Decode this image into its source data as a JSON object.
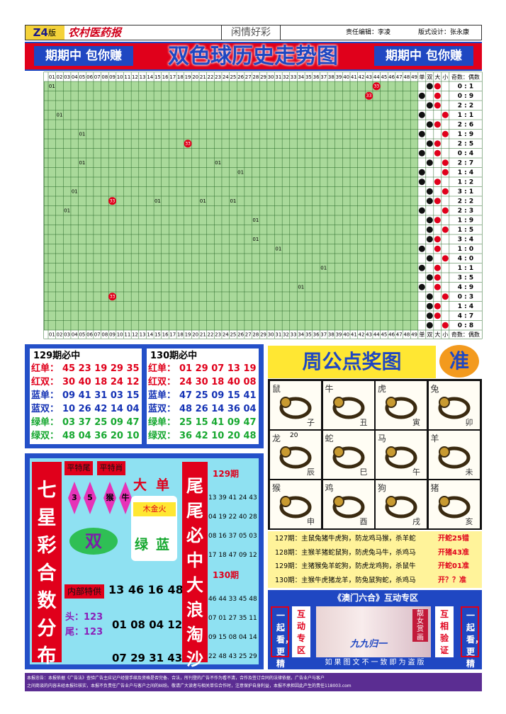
{
  "header": {
    "edition": "Z4",
    "edition_suffix": "版",
    "paper": "农村医药报",
    "column": "闲情好彩",
    "editor": "责任编辑：李凌",
    "designer": "版式设计：张永康"
  },
  "banner": {
    "slogan_left": "期期中 包你赚",
    "title": "双色球历史走势图",
    "slogan_right": "期期中 包你赚"
  },
  "trend": {
    "columns": [
      "01",
      "02",
      "03",
      "04",
      "05",
      "06",
      "07",
      "08",
      "09",
      "10",
      "11",
      "12",
      "13",
      "14",
      "15",
      "16",
      "17",
      "18",
      "19",
      "20",
      "21",
      "22",
      "23",
      "24",
      "25",
      "26",
      "27",
      "28",
      "29",
      "30",
      "31",
      "32",
      "33",
      "34",
      "35",
      "36",
      "37",
      "38",
      "39",
      "40",
      "41",
      "42",
      "43",
      "44",
      "45",
      "46",
      "47",
      "48",
      "49"
    ],
    "extra_columns": [
      "单",
      "双",
      "大",
      "小"
    ],
    "ratio_header": "奇数：偶数",
    "rows": [
      {
        "hits": [
          {
            "column": "01",
            "label": "01"
          },
          {
            "column": "44",
            "label": "33",
            "kind": "ball"
          }
        ],
        "odd_even": "双",
        "big_small": "大",
        "ratio": "0 : 1"
      },
      {
        "hits": [
          {
            "column": "43",
            "label": "33",
            "kind": "ball"
          }
        ],
        "odd_even": "单",
        "big_small": "大",
        "ratio": "0 : 9"
      },
      {
        "hits": [],
        "odd_even": "双",
        "big_small": "大",
        "ratio": "2 : 2"
      },
      {
        "hits": [
          {
            "column": "02",
            "label": "01"
          }
        ],
        "odd_even": "单",
        "big_small": "小",
        "ratio": "1 : 1"
      },
      {
        "hits": [],
        "odd_even": "双",
        "big_small": "大",
        "ratio": "2 : 6"
      },
      {
        "hits": [
          {
            "column": "05",
            "label": "01"
          }
        ],
        "odd_even": "单",
        "big_small": "小",
        "ratio": "1 : 9"
      },
      {
        "hits": [
          {
            "column": "19",
            "label": "33",
            "kind": "ball"
          }
        ],
        "odd_even": "双",
        "big_small": "大",
        "ratio": "2 : 5"
      },
      {
        "hits": [],
        "odd_even": "单",
        "big_small": "大",
        "ratio": "0 : 4"
      },
      {
        "hits": [
          {
            "column": "05",
            "label": "01"
          },
          {
            "column": "23",
            "label": "01"
          }
        ],
        "odd_even": "双",
        "big_small": "小",
        "ratio": "2 : 7"
      },
      {
        "hits": [
          {
            "column": "26",
            "label": "01"
          }
        ],
        "odd_even": "单",
        "big_small": "小",
        "ratio": "1 : 4"
      },
      {
        "hits": [],
        "odd_even": "单",
        "big_small": "大",
        "ratio": "1 : 2"
      },
      {
        "hits": [
          {
            "column": "04",
            "label": "01"
          }
        ],
        "odd_even": "双",
        "big_small": "小",
        "ratio": "3 : 1"
      },
      {
        "hits": [
          {
            "column": "09",
            "label": "33",
            "kind": "ball"
          },
          {
            "column": "15",
            "label": "01"
          },
          {
            "column": "21",
            "label": "01"
          },
          {
            "column": "25",
            "label": "01"
          }
        ],
        "odd_even": "双",
        "big_small": "大",
        "ratio": "2 : 2"
      },
      {
        "hits": [
          {
            "column": "03",
            "label": "01"
          }
        ],
        "odd_even": "单",
        "big_small": "小",
        "ratio": "2 : 3"
      },
      {
        "hits": [
          {
            "column": "28",
            "label": "01"
          }
        ],
        "odd_even": "双",
        "big_small": "大",
        "ratio": "1 : 9"
      },
      {
        "hits": [],
        "odd_even": "双",
        "big_small": "小",
        "ratio": "1 : 5"
      },
      {
        "hits": [
          {
            "column": "28",
            "label": "01"
          }
        ],
        "odd_even": "双",
        "big_small": "大",
        "ratio": "3 : 4"
      },
      {
        "hits": [
          {
            "column": "31",
            "label": "01"
          }
        ],
        "odd_even": "单",
        "big_small": "大",
        "ratio": "1 : 0"
      },
      {
        "hits": [],
        "odd_even": "双",
        "big_small": "小",
        "ratio": "4 : 0"
      },
      {
        "hits": [
          {
            "column": "37",
            "label": "01"
          }
        ],
        "odd_even": "单",
        "big_small": "大",
        "ratio": "1 : 1"
      },
      {
        "hits": [],
        "odd_even": "双",
        "big_small": "大",
        "ratio": "3 : 5"
      },
      {
        "hits": [
          {
            "column": "34",
            "label": "01"
          }
        ],
        "odd_even": "单",
        "big_small": "大",
        "ratio": "4 : 9"
      },
      {
        "hits": [
          {
            "column": "09",
            "label": "33",
            "kind": "ball"
          }
        ],
        "odd_even": "双",
        "big_small": "小",
        "ratio": "0 : 3"
      },
      {
        "hits": [],
        "odd_even": "双",
        "big_small": "大",
        "ratio": "1 : 4"
      },
      {
        "hits": [],
        "odd_even": "双",
        "big_small": "大",
        "ratio": "4 : 7"
      },
      {
        "hits": [],
        "odd_even": "双",
        "big_small": "小",
        "ratio": "0 : 8"
      }
    ]
  },
  "picks": [
    {
      "title": "129期必中",
      "lines": [
        {
          "label": "红单：",
          "numbers": "45 23 19 29 35",
          "color": "#e0001b"
        },
        {
          "label": "红双：",
          "numbers": "30 40 18 24 12",
          "color": "#e0001b"
        },
        {
          "label": "蓝单：",
          "numbers": "09 41 31 03 15",
          "color": "#1533b5"
        },
        {
          "label": "蓝双：",
          "numbers": "10 26 42 14 04",
          "color": "#1533b5"
        },
        {
          "label": "绿单：",
          "numbers": "03 37 25 09 47",
          "color": "#17a830"
        },
        {
          "label": "绿双：",
          "numbers": "48 04 36 20 10",
          "color": "#17a830"
        }
      ]
    },
    {
      "title": "130期必中",
      "lines": [
        {
          "label": "红单：",
          "numbers": "01 29 07 13 19",
          "color": "#e0001b"
        },
        {
          "label": "红双：",
          "numbers": "24 30 18 40 08",
          "color": "#e0001b"
        },
        {
          "label": "蓝单：",
          "numbers": "47 25 09 15 41",
          "color": "#1533b5"
        },
        {
          "label": "蓝双：",
          "numbers": "48 26 14 36 04",
          "color": "#1533b5"
        },
        {
          "label": "绿单：",
          "numbers": "25 15 41 09 47",
          "color": "#17a830"
        },
        {
          "label": "绿双：",
          "numbers": "36 42 10 20 48",
          "color": "#17a830"
        }
      ]
    }
  ],
  "zodiac": {
    "title": "周公点奖图",
    "badge": "准",
    "animals": [
      {
        "name": "鼠",
        "branch": "子"
      },
      {
        "name": "牛",
        "branch": "丑"
      },
      {
        "name": "虎",
        "branch": "寅"
      },
      {
        "name": "兔",
        "branch": "卯"
      },
      {
        "name": "龙",
        "branch": "辰",
        "note": "20"
      },
      {
        "name": "蛇",
        "branch": "巳"
      },
      {
        "name": "马",
        "branch": "午"
      },
      {
        "name": "羊",
        "branch": "未"
      },
      {
        "name": "猴",
        "branch": "申"
      },
      {
        "name": "鸡",
        "branch": "酉"
      },
      {
        "name": "狗",
        "branch": "戌"
      },
      {
        "name": "猪",
        "branch": "亥"
      }
    ]
  },
  "predictions": [
    {
      "text": "127期：主鼠兔猪牛虎狗，防龙鸡马猴，杀羊蛇",
      "result": "开蛇25错"
    },
    {
      "text": "128期：主猴羊猪蛇鼠狗，防虎兔马牛，杀鸡马",
      "result": "开猪43准"
    },
    {
      "text": "129期：主猪猴兔羊蛇狗，防虎龙鸡狗，杀鼠牛",
      "result": "开蛇01准"
    },
    {
      "text": "130期：主猴牛虎猪龙羊，防兔鼠狗蛇，杀鸡马",
      "result": "开？？准"
    }
  ],
  "qixing": {
    "title": "七星彩合数分布图",
    "tail_tag": "平特尾",
    "zodiac_tag": "平特肖",
    "tails": [
      "3",
      "5"
    ],
    "animals": [
      "猴",
      "牛"
    ],
    "big": "大",
    "odd": "单",
    "elements": "木金火",
    "green": "绿",
    "blue": "蓝",
    "even": "双",
    "special_tag": "内部特供",
    "special": "13 46 16 48",
    "head": "头：123",
    "tail": "尾：123",
    "line1": "01 08 04 12",
    "line2": "07 29 31 43"
  },
  "tails_block": {
    "title": "尾尾必中大浪淘沙",
    "groups": [
      {
        "period": "129期",
        "lines": [
          "13 39 41 24 43",
          "04 19 22 40 28",
          "08 16 37 05 03",
          "17 18 47 09 12"
        ]
      },
      {
        "period": "130期",
        "lines": [
          "46 44 33 45 48",
          "07 01 27 35 11",
          "09 15 08 04 14",
          "22 48 43 25 29"
        ]
      }
    ]
  },
  "macau": {
    "title": "《澳门六合》互动专区",
    "left_slogan": "一起看，更精彩！",
    "left_tag": "互动专区",
    "image_caption": "靓女赏画",
    "image_text": "九九归一",
    "right_tag": "互相验证",
    "right_slogan": "一起看，更精彩！",
    "warning": "如果图文不一致即为盗版"
  },
  "footer": {
    "lines": [
      "本报忠告：本报依据《广告法》查验广告主应记户经营手续及资格是否完备、合法，所刊登的广告不作为看不清，合作及签订合同的法律依据，广告业户与客户",
      "之间商谈的内容未经本报社核实，本报不负责任广告业户与客户之间的纠纷。敬请广大读者与相关单位合作时，注意保护自身利益，本报不承担因此产生的责任118003.com"
    ]
  }
}
